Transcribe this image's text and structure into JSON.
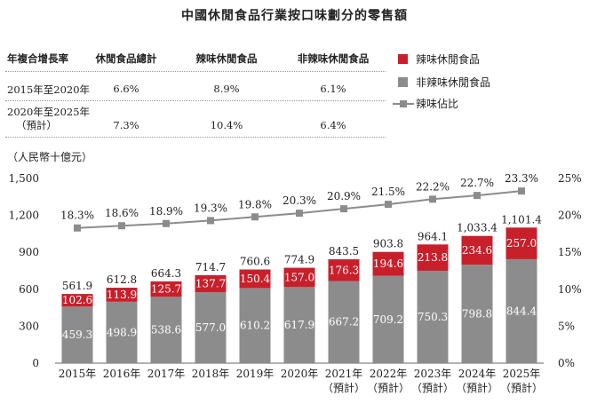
{
  "title": "中國休閒食品行業按口味劃分的零售額",
  "cagr_table": {
    "headers": [
      "年複合增長率",
      "休閒食品總計",
      "辣味休閒食品",
      "非辣味休閒食品"
    ],
    "rows": [
      {
        "period": "2015年至2020年",
        "period_line2": "",
        "total": "6.6%",
        "spicy": "8.9%",
        "non_spicy": "6.1%"
      },
      {
        "period": "2020年至2025年",
        "period_line2": "（預計）",
        "total": "7.3%",
        "spicy": "10.4%",
        "non_spicy": "6.4%"
      }
    ]
  },
  "legend": {
    "spicy": "辣味休閒食品",
    "non_spicy": "非辣味休閒食品",
    "share": "辣味佔比"
  },
  "colors": {
    "spicy": "#c8202b",
    "non_spicy": "#8c8c8c",
    "line": "#8c8c8c"
  },
  "chart_data": {
    "type": "bar",
    "stacked": true,
    "ylabel": "（人民幣十億元）",
    "ylim": [
      0,
      1500
    ],
    "yticks": [
      "0",
      "300",
      "600",
      "900",
      "1,200",
      "1,500"
    ],
    "y2lim": [
      0,
      25
    ],
    "y2ticks": [
      "0%",
      "5%",
      "10%",
      "15%",
      "20%",
      "25%"
    ],
    "categories": [
      "2015年",
      "2016年",
      "2017年",
      "2018年",
      "2019年",
      "2020年",
      "2021年",
      "2022年",
      "2023年",
      "2024年",
      "2025年"
    ],
    "category_sublabels": [
      "",
      "",
      "",
      "",
      "",
      "",
      "（預計）",
      "（預計）",
      "（預計）",
      "（預計）",
      "（預計）"
    ],
    "series": [
      {
        "name": "非辣味休閒食品",
        "values": [
          459.3,
          498.9,
          538.6,
          577.0,
          610.2,
          617.9,
          667.2,
          709.2,
          750.3,
          798.8,
          844.4
        ],
        "labels": [
          "459.3",
          "498.9",
          "538.6",
          "577.0",
          "610.2",
          "617.9",
          "667.2",
          "709.2",
          "750.3",
          "798.8",
          "844.4"
        ]
      },
      {
        "name": "辣味休閒食品",
        "values": [
          102.6,
          113.9,
          125.7,
          137.7,
          150.4,
          157.0,
          176.3,
          194.6,
          213.8,
          234.6,
          257.0
        ],
        "labels": [
          "102.6",
          "113.9",
          "125.7",
          "137.7",
          "150.4",
          "157.0",
          "176.3",
          "194.6",
          "213.8",
          "234.6",
          "257.0"
        ]
      }
    ],
    "totals": [
      561.9,
      612.8,
      664.3,
      714.7,
      760.6,
      774.9,
      843.5,
      903.8,
      964.1,
      1033.4,
      1101.4
    ],
    "total_labels": [
      "561.9",
      "612.8",
      "664.3",
      "714.7",
      "760.6",
      "774.9",
      "843.5",
      "903.8",
      "964.1",
      "1,033.4",
      "1,101.4"
    ],
    "line_series": {
      "name": "辣味佔比",
      "values": [
        18.3,
        18.6,
        18.9,
        19.3,
        19.8,
        20.3,
        20.9,
        21.5,
        22.2,
        22.7,
        23.3
      ],
      "labels": [
        "18.3%",
        "18.6%",
        "18.9%",
        "19.3%",
        "19.8%",
        "20.3%",
        "20.9%",
        "21.5%",
        "22.2%",
        "22.7%",
        "23.3%"
      ]
    }
  }
}
